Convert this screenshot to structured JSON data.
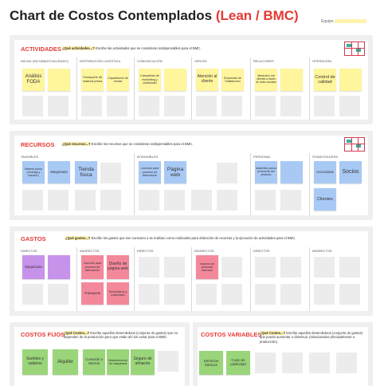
{
  "header": {
    "title_main": "Chart de Costos Contemplados",
    "title_accent": "(Lean / BMC)",
    "equipo_label": "Equipo"
  },
  "actividades": {
    "title": "ACTIVIDADES",
    "question_prefix": "¿Qué actividades...?",
    "question_text": "Escribe las actividades que se consideran indispensables para el BMC.",
    "columns": [
      "INICIAL (INCUBADO/VALIDADO)",
      "DISTRIBUCIÓN LOGÍSTICA",
      "COMUNICACIÓN",
      "VENTAS",
      "RELACIONES",
      "OPERACIÓN"
    ],
    "notes": [
      "Análisis FODA",
      "Transporte de materia prima",
      "Capacitación de ventas",
      "Campañas de marketing y publicidad",
      "Atención al cliente",
      "Encuestas de Satisfacción",
      "Interacción con clientes a través de redes sociales",
      "Control de calidad"
    ]
  },
  "recursos": {
    "title": "RECURSOS",
    "question_prefix": "¿Qué recursos...?",
    "question_text": "Escribe los recursos que se consideran indispensables para el BMC.",
    "columns": [
      "TANGIBLES",
      "INTANGIBLES",
      "PERSONAL",
      "STAKEHOLDERS"
    ],
    "notes": [
      "Materia prima (moringa y banano)",
      "Maquinaria",
      "Tienda física",
      "Licencia para proceso de fabricación",
      "Página web",
      "Asistentes para la producción del producto",
      "Accionistas",
      "Socios",
      "Clientes"
    ]
  },
  "gastos": {
    "title": "GASTOS",
    "question_prefix": "¿Qué gastos...?",
    "question_text": "Escribe los gastos que son consumo o se realizan como realizados para obtención de recursos y la ejecución de actividades para el BMC.",
    "columns": [
      "DIRECTOS",
      "INDIRECTOS",
      "DIRECTOS",
      "INDIRECTOS",
      "DIRECTOS",
      "INDIRECTOS"
    ],
    "notes": [
      "Maquinaria",
      "Licencia para proceso de fabricación",
      "Diseño de página web",
      "Transporte",
      "Suministros y materiales",
      "Insumos de personal bancario"
    ]
  },
  "costos_fijos": {
    "title": "COSTOS FIJOS",
    "question_prefix": "¿Qué Costos...?",
    "question_text": "Escribe aquellos desembolsos (conjunto de gastos) que no dependen de la producción pero que están ahí sin variar para el BMC.",
    "notes": [
      "Sueldos y salarios",
      "Alquiler",
      "Conexión a internet",
      "Mantenimiento de maquinaria",
      "Seguro de almacén"
    ]
  },
  "costos_variables": {
    "title": "COSTOS VARIABLES",
    "question_prefix": "¿Qué Costos...?",
    "question_text": "Escribe aquellos desembolsos (conjunto de gastos) que pueda aumentar o disminuir, (relacionados principalmente a producción).",
    "notes": [
      "Servicios básicos",
      "Costo de publicidad"
    ]
  }
}
